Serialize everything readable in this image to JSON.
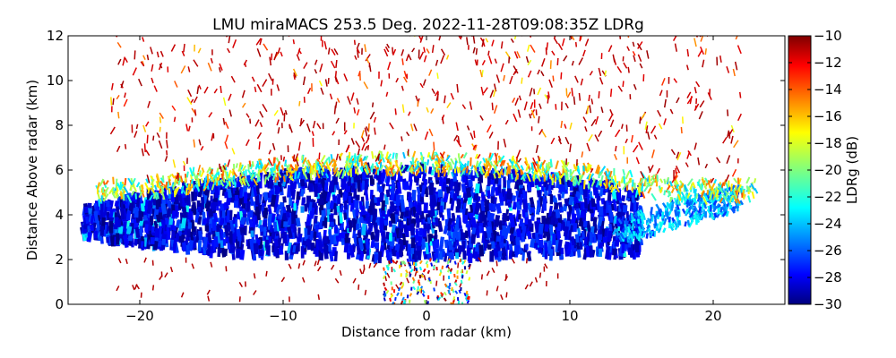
{
  "chart_data": {
    "type": "heatmap",
    "title": "LMU miraMACS 253.5 Deg. 2022-11-28T09:08:35Z  LDRg",
    "xlabel": "Distance from radar (km)",
    "ylabel": "Distance Above radar  (km)",
    "xlim": [
      -25,
      25
    ],
    "ylim": [
      0,
      12
    ],
    "x_ticks": [
      -20,
      -10,
      0,
      10,
      20
    ],
    "x_tick_labels": [
      "−20",
      "−10",
      "0",
      "10",
      "20"
    ],
    "y_ticks": [
      0,
      2,
      4,
      6,
      8,
      10,
      12
    ],
    "y_tick_labels": [
      "0",
      "2",
      "4",
      "6",
      "8",
      "10",
      "12"
    ],
    "grid": false,
    "colorbar": {
      "label": "LDRg (dB)",
      "range": [
        -30,
        -10
      ],
      "colormap": "jet",
      "ticks": [
        -10,
        -12,
        -14,
        -16,
        -18,
        -20,
        -22,
        -24,
        -26,
        -28,
        -30
      ],
      "tick_labels": [
        "−10",
        "−12",
        "−14",
        "−16",
        "−18",
        "−20",
        "−22",
        "−24",
        "−26",
        "−28",
        "−30"
      ]
    },
    "regions": [
      {
        "name": "main cloud layer",
        "x_range": [
          -24,
          15
        ],
        "height_km": [
          2.0,
          6.2
        ],
        "ldr_db": -29
      },
      {
        "name": "bright band edge",
        "x_range": [
          -23,
          23
        ],
        "height_km": [
          5.0,
          6.8
        ],
        "ldr_db": -20
      },
      {
        "name": "upper sparse echoes",
        "x_range": [
          -22,
          22
        ],
        "height_km": [
          6.5,
          12
        ],
        "ldr_db": -11
      },
      {
        "name": "near-ground clutter",
        "x_range": [
          -3,
          3
        ],
        "height_km": [
          0,
          2
        ],
        "ldr_db": -14
      }
    ]
  }
}
